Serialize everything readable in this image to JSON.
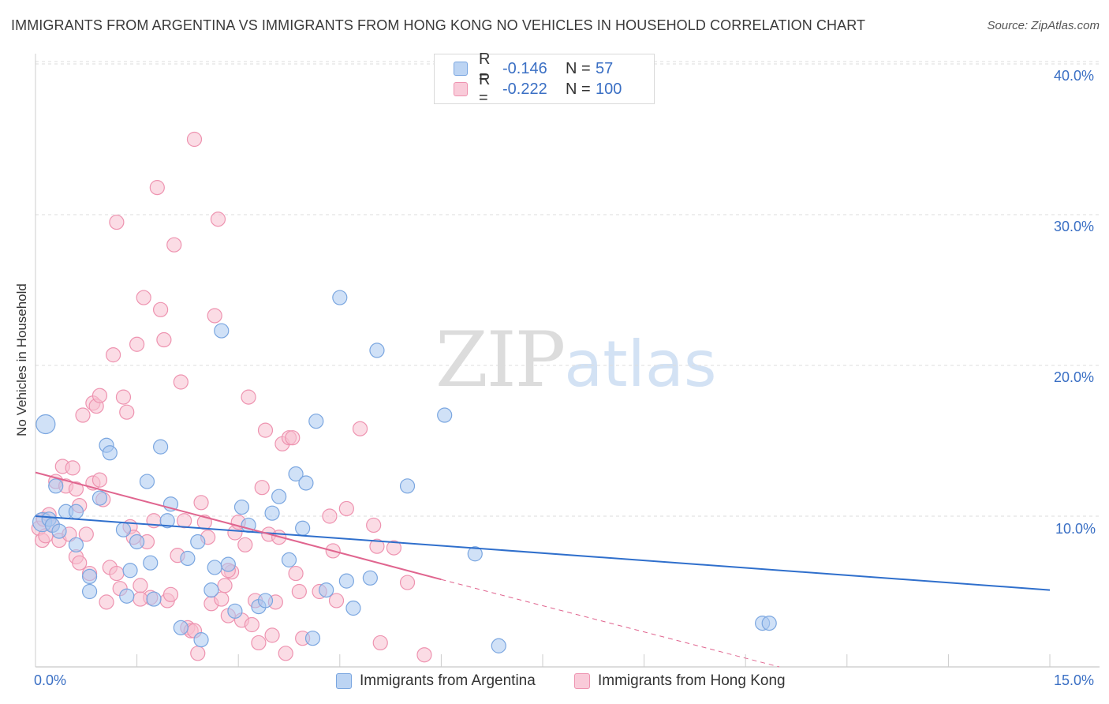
{
  "title": "IMMIGRANTS FROM ARGENTINA VS IMMIGRANTS FROM HONG KONG NO VEHICLES IN HOUSEHOLD CORRELATION CHART",
  "source": "Source: ZipAtlas.com",
  "watermark": {
    "zip": "ZIP",
    "atlas": "atlas"
  },
  "legend": {
    "rows": [
      {
        "r_label": "R =",
        "r_value": "-0.146",
        "n_label": "N =",
        "n_value": "57"
      },
      {
        "r_label": "R =",
        "r_value": "-0.222",
        "n_label": "N =",
        "n_value": "100"
      }
    ]
  },
  "x_ticks": {
    "min_label": "0.0%",
    "max_label": "15.0%"
  },
  "y_ticks": [
    "40.0%",
    "30.0%",
    "20.0%",
    "10.0%"
  ],
  "colors": {
    "argentina_fill": "#a9c8f0",
    "argentina_stroke": "#7aa6e0",
    "argentina_line": "#2f6fcc",
    "hongkong_fill": "#f7bfd0",
    "hongkong_stroke": "#ee93b0",
    "hongkong_line": "#e0658f",
    "grid": "#dddddd",
    "tick_text": "#3a6fc4"
  },
  "chart_data": {
    "type": "scatter",
    "title": "IMMIGRANTS FROM ARGENTINA VS IMMIGRANTS FROM HONG KONG NO VEHICLES IN HOUSEHOLD CORRELATION CHART",
    "xlabel": "",
    "ylabel": "No Vehicles in Household",
    "xlim": [
      0,
      15
    ],
    "ylim": [
      0,
      42
    ],
    "y_ticks": [
      10,
      20,
      30,
      40
    ],
    "grid": true,
    "legend_position": "bottom",
    "series": [
      {
        "name": "Immigrants from Argentina",
        "R": -0.146,
        "N": 57,
        "trend": {
          "x": [
            0,
            15
          ],
          "y": [
            10.0,
            5.1
          ]
        },
        "points": [
          [
            0.15,
            16.1,
            1
          ],
          [
            0.1,
            9.6,
            1
          ],
          [
            0.2,
            9.8,
            0
          ],
          [
            0.25,
            9.4,
            0
          ],
          [
            0.3,
            12.0,
            0
          ],
          [
            0.35,
            9.0,
            0
          ],
          [
            0.45,
            10.3,
            0
          ],
          [
            0.6,
            10.3,
            0
          ],
          [
            0.6,
            8.1,
            0
          ],
          [
            0.8,
            6.0,
            0
          ],
          [
            0.8,
            5.0,
            0
          ],
          [
            0.95,
            11.2,
            0
          ],
          [
            1.05,
            14.7,
            0
          ],
          [
            1.1,
            14.2,
            0
          ],
          [
            1.3,
            9.1,
            0
          ],
          [
            1.35,
            4.7,
            0
          ],
          [
            1.4,
            6.4,
            0
          ],
          [
            1.5,
            8.3,
            0
          ],
          [
            1.65,
            12.3,
            0
          ],
          [
            1.7,
            6.9,
            0
          ],
          [
            1.75,
            4.5,
            0
          ],
          [
            1.85,
            14.6,
            0
          ],
          [
            1.95,
            9.7,
            0
          ],
          [
            2.0,
            10.8,
            0
          ],
          [
            2.15,
            2.6,
            0
          ],
          [
            2.25,
            7.2,
            0
          ],
          [
            2.4,
            8.3,
            0
          ],
          [
            2.45,
            1.8,
            0
          ],
          [
            2.6,
            5.1,
            0
          ],
          [
            2.65,
            6.6,
            0
          ],
          [
            2.75,
            22.3,
            0
          ],
          [
            2.85,
            6.8,
            0
          ],
          [
            2.95,
            3.7,
            0
          ],
          [
            3.05,
            10.6,
            0
          ],
          [
            3.15,
            9.4,
            0
          ],
          [
            3.3,
            4.0,
            0
          ],
          [
            3.4,
            4.4,
            0
          ],
          [
            3.5,
            10.2,
            0
          ],
          [
            3.6,
            11.3,
            0
          ],
          [
            3.75,
            7.1,
            0
          ],
          [
            3.85,
            12.8,
            0
          ],
          [
            3.95,
            9.2,
            0
          ],
          [
            4.0,
            12.2,
            0
          ],
          [
            4.1,
            1.9,
            0
          ],
          [
            4.15,
            16.3,
            0
          ],
          [
            4.3,
            5.1,
            0
          ],
          [
            4.5,
            24.5,
            0
          ],
          [
            4.6,
            5.7,
            0
          ],
          [
            4.7,
            3.9,
            0
          ],
          [
            4.95,
            5.9,
            0
          ],
          [
            5.05,
            21.0,
            0
          ],
          [
            5.5,
            12.0,
            0
          ],
          [
            6.05,
            16.7,
            0
          ],
          [
            6.5,
            7.5,
            0
          ],
          [
            6.85,
            1.4,
            0
          ],
          [
            10.75,
            2.9,
            0
          ],
          [
            10.85,
            2.9,
            0
          ]
        ]
      },
      {
        "name": "Immigrants from Hong Kong",
        "R": -0.222,
        "N": 100,
        "trend": {
          "x": [
            0,
            6.0
          ],
          "y": [
            12.9,
            5.8
          ]
        },
        "trend_dashed": {
          "x": [
            6.0,
            11.0
          ],
          "y": [
            5.8,
            0
          ]
        },
        "points": [
          [
            0.05,
            9.2,
            0
          ],
          [
            0.1,
            8.4,
            0
          ],
          [
            0.12,
            9.8,
            0
          ],
          [
            0.15,
            8.7,
            0
          ],
          [
            0.2,
            10.1,
            0
          ],
          [
            0.25,
            9.4,
            0
          ],
          [
            0.3,
            12.3,
            0
          ],
          [
            0.35,
            8.4,
            0
          ],
          [
            0.4,
            13.3,
            0
          ],
          [
            0.45,
            12.0,
            0
          ],
          [
            0.5,
            8.8,
            0
          ],
          [
            0.55,
            13.2,
            0
          ],
          [
            0.6,
            11.8,
            0
          ],
          [
            0.6,
            7.3,
            0
          ],
          [
            0.65,
            10.7,
            0
          ],
          [
            0.65,
            6.9,
            0
          ],
          [
            0.7,
            16.7,
            0
          ],
          [
            0.75,
            8.8,
            0
          ],
          [
            0.8,
            6.2,
            0
          ],
          [
            0.85,
            17.5,
            0
          ],
          [
            0.85,
            12.2,
            0
          ],
          [
            0.9,
            17.3,
            0
          ],
          [
            0.95,
            12.4,
            0
          ],
          [
            0.95,
            18.0,
            0
          ],
          [
            1.0,
            11.1,
            0
          ],
          [
            1.05,
            4.3,
            0
          ],
          [
            1.1,
            6.6,
            0
          ],
          [
            1.15,
            20.7,
            0
          ],
          [
            1.2,
            6.2,
            0
          ],
          [
            1.2,
            29.5,
            0
          ],
          [
            1.25,
            5.2,
            0
          ],
          [
            1.3,
            17.9,
            0
          ],
          [
            1.35,
            16.9,
            0
          ],
          [
            1.4,
            9.3,
            0
          ],
          [
            1.45,
            8.6,
            0
          ],
          [
            1.5,
            21.4,
            0
          ],
          [
            1.55,
            5.4,
            0
          ],
          [
            1.6,
            24.5,
            0
          ],
          [
            1.65,
            8.3,
            0
          ],
          [
            1.7,
            4.6,
            0
          ],
          [
            1.75,
            9.7,
            0
          ],
          [
            1.8,
            31.8,
            0
          ],
          [
            1.85,
            23.7,
            0
          ],
          [
            1.9,
            21.7,
            0
          ],
          [
            1.95,
            4.4,
            0
          ],
          [
            2.0,
            4.8,
            0
          ],
          [
            2.05,
            28.0,
            0
          ],
          [
            2.1,
            7.4,
            0
          ],
          [
            2.15,
            18.9,
            0
          ],
          [
            2.2,
            9.7,
            0
          ],
          [
            2.25,
            2.6,
            0
          ],
          [
            2.3,
            2.4,
            0
          ],
          [
            2.35,
            35.0,
            0
          ],
          [
            2.4,
            0.9,
            0
          ],
          [
            2.45,
            10.9,
            0
          ],
          [
            2.5,
            9.6,
            0
          ],
          [
            2.55,
            8.6,
            0
          ],
          [
            2.6,
            4.2,
            0
          ],
          [
            2.65,
            23.3,
            0
          ],
          [
            2.7,
            29.7,
            0
          ],
          [
            2.75,
            4.5,
            0
          ],
          [
            2.8,
            5.4,
            0
          ],
          [
            2.85,
            3.4,
            0
          ],
          [
            2.9,
            6.3,
            0
          ],
          [
            2.95,
            8.9,
            0
          ],
          [
            3.0,
            9.6,
            0
          ],
          [
            3.05,
            3.1,
            0
          ],
          [
            3.1,
            8.1,
            0
          ],
          [
            3.15,
            17.9,
            0
          ],
          [
            3.2,
            2.8,
            0
          ],
          [
            3.25,
            4.4,
            0
          ],
          [
            3.3,
            1.6,
            0
          ],
          [
            3.35,
            11.9,
            0
          ],
          [
            3.4,
            15.7,
            0
          ],
          [
            3.45,
            8.8,
            0
          ],
          [
            3.5,
            2.1,
            0
          ],
          [
            3.55,
            4.3,
            0
          ],
          [
            3.6,
            8.6,
            0
          ],
          [
            3.65,
            14.8,
            0
          ],
          [
            3.7,
            0.9,
            0
          ],
          [
            3.75,
            15.2,
            0
          ],
          [
            3.8,
            15.2,
            0
          ],
          [
            3.85,
            6.2,
            0
          ],
          [
            3.9,
            5.0,
            0
          ],
          [
            4.2,
            5.0,
            0
          ],
          [
            4.35,
            10.0,
            0
          ],
          [
            4.4,
            7.7,
            0
          ],
          [
            4.45,
            4.4,
            0
          ],
          [
            4.6,
            10.5,
            0
          ],
          [
            4.8,
            15.8,
            0
          ],
          [
            5.0,
            9.4,
            0
          ],
          [
            5.05,
            8.0,
            0
          ],
          [
            5.1,
            1.6,
            0
          ],
          [
            5.3,
            7.9,
            0
          ],
          [
            5.5,
            5.6,
            0
          ],
          [
            5.75,
            0.8,
            0
          ],
          [
            3.95,
            1.9,
            0
          ],
          [
            2.35,
            2.4,
            0
          ],
          [
            1.55,
            4.5,
            0
          ],
          [
            2.85,
            6.4,
            0
          ]
        ]
      }
    ]
  },
  "bottom_legend": [
    "Immigrants from Argentina",
    "Immigrants from Hong Kong"
  ]
}
